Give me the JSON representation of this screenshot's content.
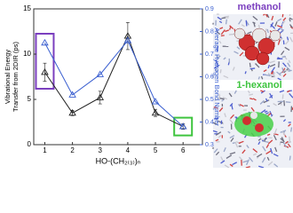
{
  "chart_data": {
    "type": "line",
    "x": [
      1,
      2,
      3,
      4,
      5,
      6
    ],
    "xlim": [
      0.6,
      6.7
    ],
    "xticks": [
      1,
      2,
      3,
      4,
      5,
      6
    ],
    "xlabel": "HO-(CH₂₍₃₎)ₙ",
    "ylabel": [
      "Vibrational Energy",
      "Transfer from 2DIR (ps)"
    ],
    "ylim": [
      0,
      15
    ],
    "yticks": [
      0,
      5,
      10,
      15
    ],
    "y2label": "Average Hydrogen Bond Number",
    "y2lim": [
      0.3,
      0.9
    ],
    "y2ticks": [
      0.3,
      0.4,
      0.5,
      0.6,
      0.7,
      0.8,
      0.9
    ],
    "series": [
      {
        "name": "Vibrational Energy Transfer",
        "color": "#222222",
        "values": [
          8.0,
          3.5,
          5.2,
          12.0,
          3.5,
          2.0
        ],
        "errors": [
          1.0,
          0.3,
          0.7,
          1.5,
          0.4,
          0.3
        ]
      },
      {
        "name": "Average Hydrogen Bond Number",
        "color": "#3a5fd0",
        "axis": "y2",
        "values": [
          0.75,
          0.52,
          0.61,
          0.76,
          0.49,
          0.38
        ]
      }
    ]
  },
  "side_panel": {
    "top_label": "methanol",
    "bottom_label": "1-hexanol"
  }
}
